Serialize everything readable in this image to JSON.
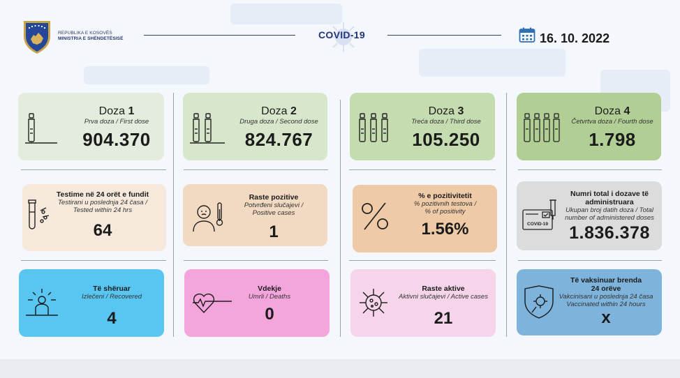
{
  "header": {
    "ministry_line1": "REPUBLIKA E KOSOVËS",
    "ministry_line2": "MINISTRIA E SHËNDETËSISË",
    "title": "COVID-19",
    "date": "16. 10. 2022"
  },
  "doses": [
    {
      "label": "Doza",
      "num": "1",
      "sub": "Prva doza / First dose",
      "value": "904.370"
    },
    {
      "label": "Doza",
      "num": "2",
      "sub": "Druga doza / Second dose",
      "value": "824.767"
    },
    {
      "label": "Doza",
      "num": "3",
      "sub": "Treća doza / Third dose",
      "value": "105.250"
    },
    {
      "label": "Doza",
      "num": "4",
      "sub": "Četvrtva doza / Fourth dose",
      "value": "1.798"
    }
  ],
  "row2": [
    {
      "title": "Testime në 24 orët e fundit",
      "sub1": "Testirani u poslednja 24 časa /",
      "sub2": "Tested within 24 hrs",
      "value": "64"
    },
    {
      "title": "Raste pozitive",
      "sub1": "Potvrđeni slučajevi /",
      "sub2": "Positive cases",
      "value": "1"
    },
    {
      "title": "% e pozitivitetit",
      "sub1": "% pozitivnih testova /",
      "sub2": "% of positivity",
      "value": "1.56%"
    },
    {
      "title": "Numri total i dozave të administruara",
      "title1": "Numri total i dozave të",
      "title2": "administruara",
      "sub1": "Ukupan broj datih doza / Total",
      "sub2": "number of administered doses",
      "value": "1.836.378",
      "badge": "COVID-19"
    }
  ],
  "row3": [
    {
      "title": "Të shëruar",
      "sub1": "Izlečeni / Recovered",
      "value": "4"
    },
    {
      "title": "Vdekje",
      "sub1": "Umrli / Deaths",
      "value": "0"
    },
    {
      "title": "Raste aktive",
      "sub1": "Aktivni slučajevi / Active cases",
      "value": "21"
    },
    {
      "title1": "Të vaksinuar brenda",
      "title2": "24 orëve",
      "sub1": "Vakcinisani u poslednja 24 časa",
      "sub2": "Vaccinated within 24 hours",
      "value": "x"
    }
  ],
  "colors": {
    "dose1": "#e4ecdd",
    "dose2": "#d8e6cb",
    "dose3": "#c5dbb0",
    "dose4": "#b1cf95",
    "tests": "#f6e9dc",
    "positive": "#f2d9c1",
    "positivity": "#efcaa7",
    "total": "#dcdcdc",
    "recovered": "#58c6f1",
    "deaths": "#f4a6dc",
    "active": "#f6d5ea",
    "vaccinated24": "#7eb3db",
    "navy": "#24347a"
  }
}
